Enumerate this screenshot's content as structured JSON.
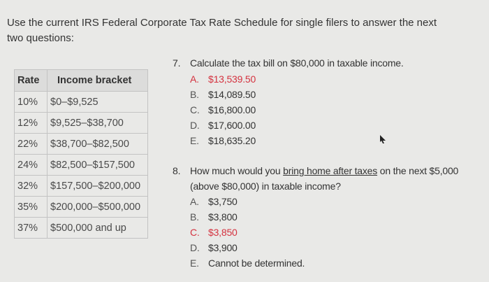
{
  "intro": "Use the current IRS Federal Corporate Tax Rate Schedule for single filers to answer the next two questions:",
  "table": {
    "headers": [
      "Rate",
      "Income bracket"
    ],
    "rows": [
      [
        "10%",
        "$0–$9,525"
      ],
      [
        "12%",
        "$9,525–$38,700"
      ],
      [
        "22%",
        "$38,700–$82,500"
      ],
      [
        "24%",
        "$82,500–$157,500"
      ],
      [
        "32%",
        "$157,500–$200,000"
      ],
      [
        "35%",
        "$200,000–$500,000"
      ],
      [
        "37%",
        "$500,000 and up"
      ]
    ]
  },
  "q7": {
    "number": "7.",
    "text": "Calculate the tax bill on $80,000 in taxable income.",
    "options": [
      {
        "letter": "A.",
        "text": "$13,539.50",
        "highlighted": true
      },
      {
        "letter": "B.",
        "text": "$14,089.50"
      },
      {
        "letter": "C.",
        "text": "$16,800.00"
      },
      {
        "letter": "D.",
        "text": "$17,600.00"
      },
      {
        "letter": "E.",
        "text": "$18,635.20"
      }
    ]
  },
  "q8": {
    "number": "8.",
    "text_before": "How much would you ",
    "text_underlined": "bring home after taxes",
    "text_after": " on the next $5,000",
    "text_line2": "(above $80,000) in taxable income?",
    "options": [
      {
        "letter": "A.",
        "text": "$3,750"
      },
      {
        "letter": "B.",
        "text": "$3,800"
      },
      {
        "letter": "C.",
        "text": "$3,850",
        "highlighted": true
      },
      {
        "letter": "D.",
        "text": "$3,900"
      },
      {
        "letter": "E.",
        "text": "Cannot be determined."
      }
    ]
  },
  "colors": {
    "highlight": "#d4323f",
    "background": "#e9e9e7"
  }
}
